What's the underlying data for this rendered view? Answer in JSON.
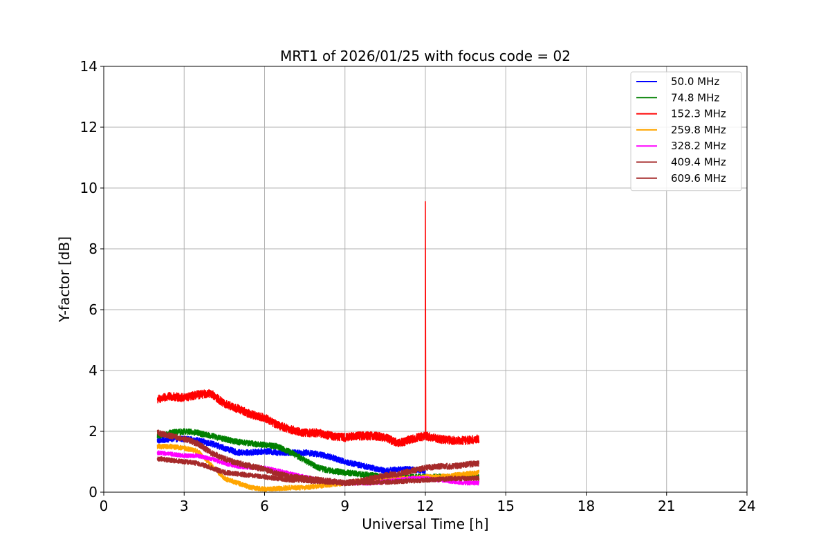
{
  "chart_data": {
    "type": "line",
    "title": "MRT1 of 2026/01/25 with focus code = 02",
    "xlabel": "Universal Time [h]",
    "ylabel": "Y-factor [dB]",
    "xlim": [
      0,
      24
    ],
    "ylim": [
      0,
      14
    ],
    "xticks": [
      0,
      3,
      6,
      9,
      12,
      15,
      18,
      21,
      24
    ],
    "yticks": [
      0,
      2,
      4,
      6,
      8,
      10,
      12,
      14
    ],
    "grid": true,
    "legend_position": "top-right",
    "series": [
      {
        "name": "50.0 MHz",
        "legend_label": " 50.0 MHz",
        "color": "#0000ff",
        "x": [
          2,
          2.5,
          3,
          3.5,
          4,
          4.5,
          5,
          5.5,
          6,
          6.5,
          7,
          7.5,
          8,
          8.5,
          9,
          9.5,
          10,
          10.5,
          11,
          11.5,
          12
        ],
        "y": [
          1.7,
          1.75,
          1.75,
          1.7,
          1.6,
          1.45,
          1.3,
          1.3,
          1.35,
          1.3,
          1.3,
          1.3,
          1.25,
          1.15,
          1.0,
          0.9,
          0.8,
          0.7,
          0.75,
          0.75,
          0.7
        ],
        "noise": 0.1
      },
      {
        "name": "74.8 MHz",
        "legend_label": " 74.8 MHz",
        "color": "#008000",
        "x": [
          2,
          2.5,
          3,
          3.5,
          4,
          4.5,
          5,
          5.5,
          6,
          6.5,
          7,
          7.5,
          8,
          8.5,
          9,
          9.5,
          10,
          10.5,
          11,
          11.5,
          12,
          12.5,
          13,
          13.5,
          14
        ],
        "y": [
          1.85,
          1.95,
          2.0,
          1.95,
          1.85,
          1.75,
          1.65,
          1.6,
          1.55,
          1.5,
          1.3,
          1.05,
          0.8,
          0.7,
          0.65,
          0.6,
          0.55,
          0.5,
          0.5,
          0.5,
          0.5,
          0.5,
          0.5,
          0.5,
          0.5
        ],
        "noise": 0.1
      },
      {
        "name": "152.3 MHz",
        "legend_label": "152.3 MHz",
        "color": "#ff0000",
        "x": [
          2,
          2.5,
          3,
          3.5,
          4,
          4.5,
          5,
          5.5,
          6,
          6.5,
          7,
          7.5,
          8,
          8.5,
          9,
          9.5,
          10,
          10.5,
          11,
          11.5,
          12,
          12.5,
          13,
          13.5,
          14
        ],
        "y": [
          3.05,
          3.15,
          3.1,
          3.2,
          3.25,
          2.9,
          2.75,
          2.55,
          2.45,
          2.2,
          2.05,
          1.95,
          1.95,
          1.85,
          1.8,
          1.85,
          1.85,
          1.8,
          1.6,
          1.75,
          1.85,
          1.75,
          1.7,
          1.7,
          1.75
        ],
        "noise": 0.14,
        "spike": {
          "x": 12.0,
          "y": 9.55
        }
      },
      {
        "name": "259.8 MHz",
        "legend_label": "259.8 MHz",
        "color": "#ffa500",
        "x": [
          2,
          2.5,
          3,
          3.5,
          4,
          4.5,
          5,
          5.5,
          6,
          6.5,
          7,
          7.5,
          8,
          8.5,
          9,
          9.5,
          10,
          10.5,
          11,
          11.5,
          12,
          12.5,
          13,
          13.5,
          14
        ],
        "y": [
          1.5,
          1.5,
          1.45,
          1.35,
          0.9,
          0.45,
          0.3,
          0.15,
          0.1,
          0.12,
          0.15,
          0.15,
          0.2,
          0.25,
          0.3,
          0.35,
          0.4,
          0.4,
          0.45,
          0.45,
          0.5,
          0.5,
          0.55,
          0.6,
          0.65
        ],
        "noise": 0.08
      },
      {
        "name": "328.2 MHz",
        "legend_label": "328.2 MHz",
        "color": "#ff00ff",
        "x": [
          2,
          2.5,
          3,
          3.5,
          4,
          4.5,
          5,
          5.5,
          6,
          6.5,
          7,
          7.5,
          8,
          8.5,
          9,
          9.5,
          10,
          10.5,
          11,
          11.5,
          12,
          12.5,
          13,
          13.5,
          14
        ],
        "y": [
          1.3,
          1.25,
          1.2,
          1.2,
          1.1,
          0.95,
          0.85,
          0.8,
          0.8,
          0.7,
          0.6,
          0.5,
          0.4,
          0.35,
          0.3,
          0.3,
          0.3,
          0.35,
          0.4,
          0.45,
          0.45,
          0.4,
          0.35,
          0.3,
          0.3
        ],
        "noise": 0.07
      },
      {
        "name": "409.4 MHz",
        "legend_label": "409.4 MHz",
        "color": "#a52a2a",
        "x": [
          2,
          2.5,
          3,
          3.5,
          4,
          4.5,
          5,
          5.5,
          6,
          6.5,
          7,
          7.5,
          8,
          8.5,
          9,
          9.5,
          10,
          10.5,
          11,
          11.5,
          12,
          12.5,
          13,
          13.5,
          14
        ],
        "y": [
          1.1,
          1.05,
          1.0,
          0.95,
          0.8,
          0.65,
          0.6,
          0.55,
          0.5,
          0.45,
          0.4,
          0.38,
          0.35,
          0.33,
          0.3,
          0.3,
          0.32,
          0.33,
          0.35,
          0.37,
          0.4,
          0.42,
          0.45,
          0.45,
          0.45
        ],
        "noise": 0.08
      },
      {
        "name": "609.6 MHz",
        "legend_label": "609.6 MHz",
        "color": "#a52a2a",
        "x": [
          2,
          2.5,
          3,
          3.5,
          4,
          4.5,
          5,
          5.5,
          6,
          6.5,
          7,
          7.5,
          8,
          8.5,
          9,
          9.5,
          10,
          10.5,
          11,
          11.5,
          12,
          12.5,
          13,
          13.5,
          14
        ],
        "y": [
          1.95,
          1.85,
          1.75,
          1.6,
          1.3,
          1.1,
          0.95,
          0.85,
          0.75,
          0.6,
          0.5,
          0.45,
          0.4,
          0.35,
          0.3,
          0.35,
          0.45,
          0.55,
          0.6,
          0.7,
          0.8,
          0.85,
          0.85,
          0.9,
          0.95
        ],
        "noise": 0.1
      }
    ]
  }
}
